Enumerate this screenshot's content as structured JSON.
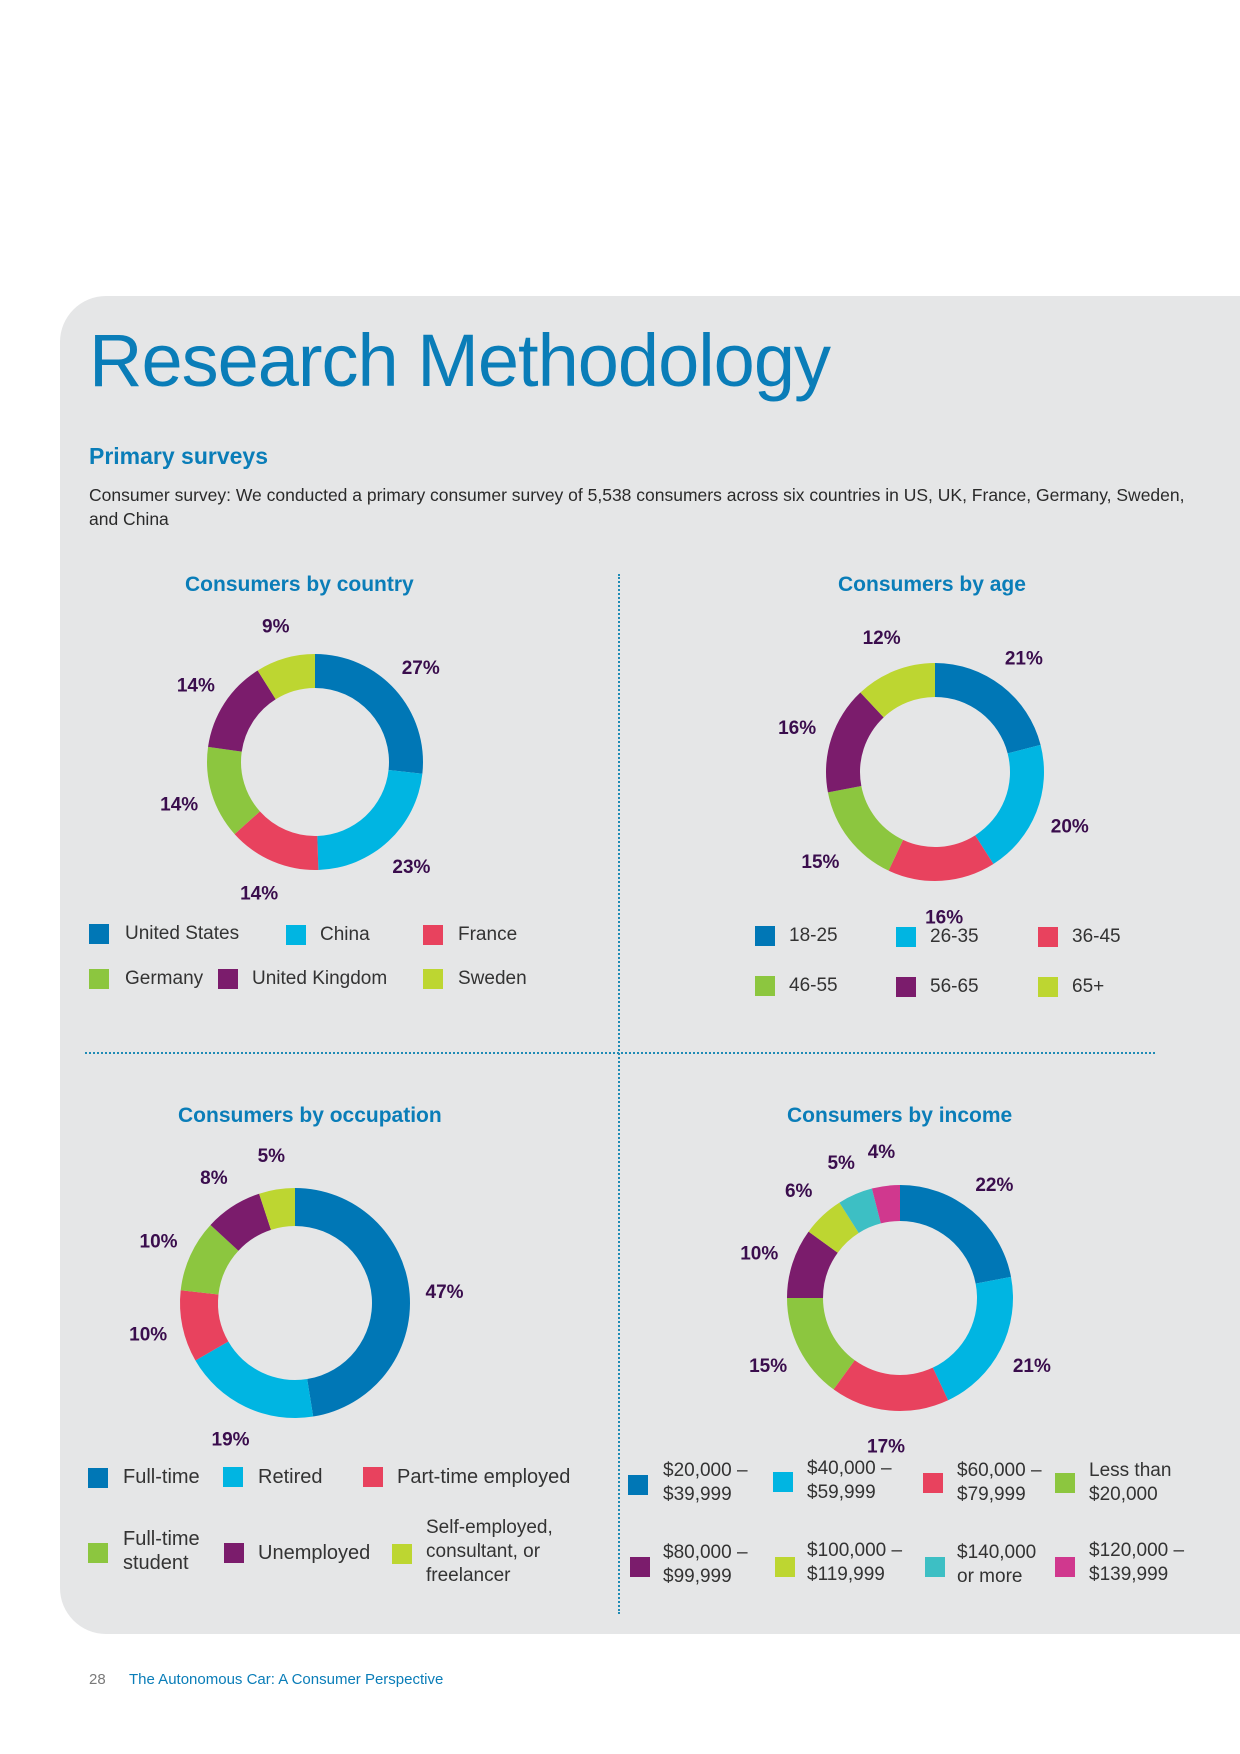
{
  "page": {
    "title": "Research Methodology",
    "subheading": "Primary surveys",
    "intro": "Consumer survey: We conducted a primary consumer survey of 5,538 consumers across six countries in US, UK, France, Germany, Sweden, and China",
    "footer_page": "28",
    "footer_title": "The Autonomous Car: A Consumer Perspective"
  },
  "colors": {
    "blue": "#0077b6",
    "cyan": "#00b5e2",
    "red": "#e8425e",
    "green": "#8cc63f",
    "purple": "#7b1c6c",
    "lime": "#bdd631",
    "teal": "#3dbfc4",
    "magenta": "#d0388e"
  },
  "chart_data": [
    {
      "type": "pie",
      "title": "Consumers by country",
      "categories": [
        "United States",
        "China",
        "France",
        "Germany",
        "United Kingdom",
        "Sweden"
      ],
      "values": [
        27,
        23,
        14,
        14,
        14,
        9
      ],
      "labels": [
        "27%",
        "23%",
        "14%",
        "14%",
        "14%",
        "9%"
      ],
      "colors": [
        "#0077b6",
        "#00b5e2",
        "#e8425e",
        "#8cc63f",
        "#7b1c6c",
        "#bdd631"
      ],
      "legend": [
        "United States",
        "China",
        "France",
        "Germany",
        "United Kingdom",
        "Sweden"
      ]
    },
    {
      "type": "pie",
      "title": "Consumers by age",
      "categories": [
        "18-25",
        "26-35",
        "36-45",
        "46-55",
        "56-65",
        "65+"
      ],
      "values": [
        21,
        20,
        16,
        15,
        16,
        12
      ],
      "labels": [
        "21%",
        "20%",
        "16%",
        "15%",
        "16%",
        "12%"
      ],
      "colors": [
        "#0077b6",
        "#00b5e2",
        "#e8425e",
        "#8cc63f",
        "#7b1c6c",
        "#bdd631"
      ],
      "legend": [
        "18-25",
        "26-35",
        "36-45",
        "46-55",
        "56-65",
        "65+"
      ]
    },
    {
      "type": "pie",
      "title": "Consumers by occupation",
      "categories": [
        "Full-time",
        "Retired",
        "Part-time employed",
        "Full-time student",
        "Unemployed",
        "Self-employed, consultant, or freelancer"
      ],
      "values": [
        47,
        19,
        10,
        10,
        8,
        5
      ],
      "labels": [
        "47%",
        "19%",
        "10%",
        "10%",
        "8%",
        "5%"
      ],
      "colors": [
        "#0077b6",
        "#00b5e2",
        "#e8425e",
        "#8cc63f",
        "#7b1c6c",
        "#bdd631"
      ],
      "legend": [
        "Full-time",
        "Retired",
        "Part-time employed",
        "Full-time\nstudent",
        "Unemployed",
        "Self-employed,\nconsultant, or\nfreelancer"
      ]
    },
    {
      "type": "pie",
      "title": "Consumers by income",
      "categories": [
        "$20,000 – $39,999",
        "$40,000 – $59,999",
        "$60,000 – $79,999",
        "Less than $20,000",
        "$80,000 – $99,999",
        "$100,000 – $119,999",
        "$140,000 or more",
        "$120,000 – $139,999"
      ],
      "values": [
        22,
        21,
        17,
        15,
        10,
        6,
        5,
        4
      ],
      "labels": [
        "22%",
        "21%",
        "17%",
        "15%",
        "10%",
        "6%",
        "5%",
        "4%"
      ],
      "colors": [
        "#0077b6",
        "#00b5e2",
        "#e8425e",
        "#8cc63f",
        "#7b1c6c",
        "#bdd631",
        "#3dbfc4",
        "#d0388e"
      ],
      "legend": [
        "$20,000 –\n$39,999",
        "$40,000 –\n$59,999",
        "$60,000 –\n$79,999",
        "Less than\n$20,000",
        "$80,000 –\n$99,999",
        "$100,000 –\n$119,999",
        "$140,000\nor more",
        "$120,000 –\n$139,999"
      ]
    }
  ]
}
